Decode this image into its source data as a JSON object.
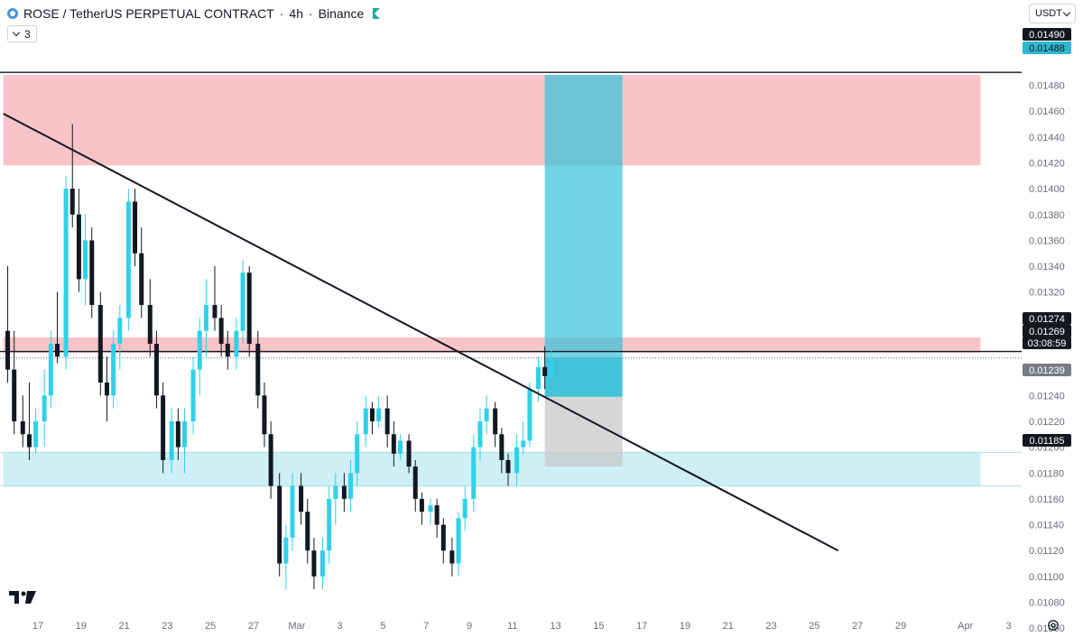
{
  "header": {
    "symbol": "ROSE / TetherUS PERPETUAL CONTRACT",
    "sep1": "·",
    "interval": "4h",
    "sep2": "·",
    "exchange": "Binance",
    "indicator_count": "3"
  },
  "currency": "USDT",
  "colors": {
    "up": "#2fd1e8",
    "down": "#131722",
    "resistance_zone": "#f8c4c8",
    "support_zone": "#cdeff5",
    "profit_zone": "#35c3dc",
    "loss_zone": "#c8c8c8"
  },
  "icons": [
    "symbol-logo-icon",
    "market-open-flag-icon",
    "chevron-down-icon",
    "tradingview-logo-icon",
    "settings-gear-icon"
  ],
  "chart_data": {
    "type": "candlestick",
    "symbol": "ROSE / TetherUS PERPETUAL CONTRACT",
    "interval": "4h",
    "exchange": "Binance",
    "ylim": [
      0.01046,
      0.01502
    ],
    "y_ticks": [
      "0.01060",
      "0.01080",
      "0.01100",
      "0.01120",
      "0.01140",
      "0.01160",
      "0.01180",
      "0.01200",
      "0.01220",
      "0.01240",
      "0.01260",
      "0.01280",
      "0.01300",
      "0.01320",
      "0.01340",
      "0.01360",
      "0.01380",
      "0.01400",
      "0.01420",
      "0.01440",
      "0.01460",
      "0.01480"
    ],
    "x_ticks": [
      {
        "label": "17",
        "day": 17
      },
      {
        "label": "19",
        "day": 19
      },
      {
        "label": "21",
        "day": 21
      },
      {
        "label": "23",
        "day": 23
      },
      {
        "label": "25",
        "day": 25
      },
      {
        "label": "27",
        "day": 27
      },
      {
        "label": "Mar",
        "day": 29
      },
      {
        "label": "3",
        "day": 31
      },
      {
        "label": "5",
        "day": 33
      },
      {
        "label": "7",
        "day": 35
      },
      {
        "label": "9",
        "day": 37
      },
      {
        "label": "11",
        "day": 39
      },
      {
        "label": "13",
        "day": 41
      },
      {
        "label": "15",
        "day": 43
      },
      {
        "label": "17",
        "day": 45
      },
      {
        "label": "19",
        "day": 47
      },
      {
        "label": "21",
        "day": 49
      },
      {
        "label": "23",
        "day": 51
      },
      {
        "label": "25",
        "day": 53
      },
      {
        "label": "27",
        "day": 55
      },
      {
        "label": "29",
        "day": 57
      },
      {
        "label": "Apr",
        "day": 60
      },
      {
        "label": "3",
        "day": 62
      }
    ],
    "price_labels": [
      {
        "text": "0.01490",
        "price": 0.0149,
        "bg": "#131722",
        "fg": "#ffffff"
      },
      {
        "text": "0.01488",
        "price": 0.01488,
        "bg": "#2fb8d0",
        "fg": "#131722"
      },
      {
        "text": "0.01274",
        "price": 0.01274,
        "bg": "#131722",
        "fg": "#ffffff"
      },
      {
        "text": "0.01269",
        "price": 0.01269,
        "bg": "#131722",
        "fg": "#ffffff"
      },
      {
        "text": "03:08:59",
        "price": 0.0126,
        "bg": "#131722",
        "fg": "#ffffff"
      },
      {
        "text": "0.01239",
        "price": 0.01239,
        "bg": "#787b86",
        "fg": "#ffffff"
      },
      {
        "text": "0.01185",
        "price": 0.01185,
        "bg": "#131722",
        "fg": "#ffffff"
      }
    ],
    "zones": [
      {
        "name": "resistance-zone-upper",
        "from_day": 15.4,
        "to_day": 60.7,
        "top": 0.01488,
        "bottom": 0.01418,
        "color": "#f8c4c8"
      },
      {
        "name": "resistance-zone-lower",
        "from_day": 15.4,
        "to_day": 60.7,
        "top": 0.01285,
        "bottom": 0.01273,
        "color": "#f8c4c8"
      },
      {
        "name": "support-zone",
        "from_day": 15.4,
        "to_day": 60.7,
        "top": 0.01196,
        "bottom": 0.0117,
        "color": "#cdeff5"
      }
    ],
    "position": {
      "type": "long",
      "from_day": 40.5,
      "to_day": 44.1,
      "target": 0.01488,
      "entry": 0.01239,
      "stop": 0.01185
    },
    "horizontal_lines": [
      {
        "price": 0.01274,
        "style": "solid"
      },
      {
        "price": 0.01269,
        "style": "dotted"
      },
      {
        "price": 0.0149,
        "style": "solid"
      }
    ],
    "trendline": {
      "x1_day": 15.4,
      "y1": 0.01458,
      "x2_day": 54.1,
      "y2": 0.0112
    },
    "candles": [
      {
        "day": 15.6,
        "o": 0.0129,
        "h": 0.0134,
        "l": 0.0125,
        "c": 0.0126
      },
      {
        "day": 15.9,
        "o": 0.0126,
        "h": 0.0129,
        "l": 0.0121,
        "c": 0.0122
      },
      {
        "day": 16.3,
        "o": 0.0122,
        "h": 0.0124,
        "l": 0.012,
        "c": 0.0121
      },
      {
        "day": 16.6,
        "o": 0.0121,
        "h": 0.0125,
        "l": 0.0119,
        "c": 0.012
      },
      {
        "day": 16.9,
        "o": 0.012,
        "h": 0.0123,
        "l": 0.01195,
        "c": 0.0122
      },
      {
        "day": 17.3,
        "o": 0.0122,
        "h": 0.0126,
        "l": 0.012,
        "c": 0.0124
      },
      {
        "day": 17.6,
        "o": 0.0124,
        "h": 0.0129,
        "l": 0.0123,
        "c": 0.0128
      },
      {
        "day": 17.9,
        "o": 0.0128,
        "h": 0.0132,
        "l": 0.01265,
        "c": 0.0127
      },
      {
        "day": 18.3,
        "o": 0.0127,
        "h": 0.0141,
        "l": 0.0126,
        "c": 0.014
      },
      {
        "day": 18.6,
        "o": 0.014,
        "h": 0.0145,
        "l": 0.0137,
        "c": 0.0138
      },
      {
        "day": 18.9,
        "o": 0.0138,
        "h": 0.014,
        "l": 0.0132,
        "c": 0.0133
      },
      {
        "day": 19.2,
        "o": 0.0133,
        "h": 0.0138,
        "l": 0.0131,
        "c": 0.0136
      },
      {
        "day": 19.5,
        "o": 0.0136,
        "h": 0.0137,
        "l": 0.013,
        "c": 0.0131
      },
      {
        "day": 19.9,
        "o": 0.0131,
        "h": 0.0132,
        "l": 0.0124,
        "c": 0.0125
      },
      {
        "day": 20.2,
        "o": 0.0125,
        "h": 0.0127,
        "l": 0.0122,
        "c": 0.0124
      },
      {
        "day": 20.5,
        "o": 0.0124,
        "h": 0.0129,
        "l": 0.0123,
        "c": 0.0128
      },
      {
        "day": 20.8,
        "o": 0.0128,
        "h": 0.0131,
        "l": 0.0126,
        "c": 0.013
      },
      {
        "day": 21.2,
        "o": 0.013,
        "h": 0.014,
        "l": 0.0129,
        "c": 0.0139
      },
      {
        "day": 21.5,
        "o": 0.0139,
        "h": 0.014,
        "l": 0.0134,
        "c": 0.0135
      },
      {
        "day": 21.8,
        "o": 0.0135,
        "h": 0.0137,
        "l": 0.013,
        "c": 0.0131
      },
      {
        "day": 22.2,
        "o": 0.0131,
        "h": 0.0133,
        "l": 0.0127,
        "c": 0.0128
      },
      {
        "day": 22.5,
        "o": 0.0128,
        "h": 0.0129,
        "l": 0.0123,
        "c": 0.0124
      },
      {
        "day": 22.8,
        "o": 0.0124,
        "h": 0.0125,
        "l": 0.0118,
        "c": 0.0119
      },
      {
        "day": 23.2,
        "o": 0.0119,
        "h": 0.0123,
        "l": 0.0118,
        "c": 0.0122
      },
      {
        "day": 23.5,
        "o": 0.0122,
        "h": 0.0123,
        "l": 0.0119,
        "c": 0.012
      },
      {
        "day": 23.8,
        "o": 0.012,
        "h": 0.0123,
        "l": 0.0118,
        "c": 0.0122
      },
      {
        "day": 24.2,
        "o": 0.0122,
        "h": 0.0127,
        "l": 0.0121,
        "c": 0.0126
      },
      {
        "day": 24.5,
        "o": 0.0126,
        "h": 0.013,
        "l": 0.0124,
        "c": 0.0129
      },
      {
        "day": 24.8,
        "o": 0.0129,
        "h": 0.0133,
        "l": 0.0127,
        "c": 0.0131
      },
      {
        "day": 25.2,
        "o": 0.0131,
        "h": 0.0134,
        "l": 0.0129,
        "c": 0.013
      },
      {
        "day": 25.5,
        "o": 0.013,
        "h": 0.0131,
        "l": 0.0127,
        "c": 0.0128
      },
      {
        "day": 25.8,
        "o": 0.0128,
        "h": 0.0129,
        "l": 0.0126,
        "c": 0.0127
      },
      {
        "day": 26.2,
        "o": 0.0127,
        "h": 0.013,
        "l": 0.0126,
        "c": 0.0129
      },
      {
        "day": 26.5,
        "o": 0.0129,
        "h": 0.01345,
        "l": 0.0128,
        "c": 0.01335
      },
      {
        "day": 26.8,
        "o": 0.01335,
        "h": 0.0134,
        "l": 0.0127,
        "c": 0.0128
      },
      {
        "day": 27.2,
        "o": 0.0128,
        "h": 0.0129,
        "l": 0.0123,
        "c": 0.0124
      },
      {
        "day": 27.5,
        "o": 0.0124,
        "h": 0.0125,
        "l": 0.012,
        "c": 0.0121
      },
      {
        "day": 27.8,
        "o": 0.0121,
        "h": 0.0122,
        "l": 0.0116,
        "c": 0.0117
      },
      {
        "day": 28.2,
        "o": 0.0117,
        "h": 0.0118,
        "l": 0.011,
        "c": 0.0111
      },
      {
        "day": 28.5,
        "o": 0.0111,
        "h": 0.0114,
        "l": 0.0109,
        "c": 0.0113
      },
      {
        "day": 28.8,
        "o": 0.0113,
        "h": 0.0118,
        "l": 0.0112,
        "c": 0.0117
      },
      {
        "day": 29.2,
        "o": 0.0117,
        "h": 0.0118,
        "l": 0.0114,
        "c": 0.0115
      },
      {
        "day": 29.5,
        "o": 0.0115,
        "h": 0.0116,
        "l": 0.0111,
        "c": 0.0112
      },
      {
        "day": 29.8,
        "o": 0.0112,
        "h": 0.0113,
        "l": 0.0109,
        "c": 0.011
      },
      {
        "day": 30.2,
        "o": 0.011,
        "h": 0.0113,
        "l": 0.0109,
        "c": 0.0112
      },
      {
        "day": 30.5,
        "o": 0.0112,
        "h": 0.0117,
        "l": 0.0111,
        "c": 0.0116
      },
      {
        "day": 30.8,
        "o": 0.0116,
        "h": 0.0118,
        "l": 0.0114,
        "c": 0.0117
      },
      {
        "day": 31.2,
        "o": 0.0117,
        "h": 0.0118,
        "l": 0.0115,
        "c": 0.0116
      },
      {
        "day": 31.5,
        "o": 0.0116,
        "h": 0.0119,
        "l": 0.0115,
        "c": 0.0118
      },
      {
        "day": 31.8,
        "o": 0.0118,
        "h": 0.0122,
        "l": 0.0117,
        "c": 0.0121
      },
      {
        "day": 32.2,
        "o": 0.0121,
        "h": 0.0124,
        "l": 0.012,
        "c": 0.0123
      },
      {
        "day": 32.5,
        "o": 0.0123,
        "h": 0.01235,
        "l": 0.0121,
        "c": 0.0122
      },
      {
        "day": 32.8,
        "o": 0.0122,
        "h": 0.0124,
        "l": 0.01215,
        "c": 0.0123
      },
      {
        "day": 33.2,
        "o": 0.0123,
        "h": 0.0124,
        "l": 0.012,
        "c": 0.0121
      },
      {
        "day": 33.5,
        "o": 0.0121,
        "h": 0.0122,
        "l": 0.01185,
        "c": 0.01195
      },
      {
        "day": 33.8,
        "o": 0.01195,
        "h": 0.0121,
        "l": 0.0119,
        "c": 0.01205
      },
      {
        "day": 34.2,
        "o": 0.01205,
        "h": 0.0121,
        "l": 0.0118,
        "c": 0.01185
      },
      {
        "day": 34.5,
        "o": 0.01185,
        "h": 0.0119,
        "l": 0.0115,
        "c": 0.0116
      },
      {
        "day": 34.8,
        "o": 0.0116,
        "h": 0.01165,
        "l": 0.0114,
        "c": 0.0115
      },
      {
        "day": 35.2,
        "o": 0.0115,
        "h": 0.0116,
        "l": 0.0114,
        "c": 0.01155
      },
      {
        "day": 35.5,
        "o": 0.01155,
        "h": 0.0116,
        "l": 0.0113,
        "c": 0.0114
      },
      {
        "day": 35.8,
        "o": 0.0114,
        "h": 0.01145,
        "l": 0.0111,
        "c": 0.0112
      },
      {
        "day": 36.2,
        "o": 0.0112,
        "h": 0.0113,
        "l": 0.011,
        "c": 0.0111
      },
      {
        "day": 36.5,
        "o": 0.0111,
        "h": 0.0115,
        "l": 0.011,
        "c": 0.01145
      },
      {
        "day": 36.8,
        "o": 0.01145,
        "h": 0.0117,
        "l": 0.01135,
        "c": 0.0116
      },
      {
        "day": 37.2,
        "o": 0.0116,
        "h": 0.0121,
        "l": 0.0115,
        "c": 0.012
      },
      {
        "day": 37.5,
        "o": 0.012,
        "h": 0.0123,
        "l": 0.0119,
        "c": 0.0122
      },
      {
        "day": 37.8,
        "o": 0.0122,
        "h": 0.0124,
        "l": 0.0121,
        "c": 0.0123
      },
      {
        "day": 38.2,
        "o": 0.0123,
        "h": 0.01235,
        "l": 0.012,
        "c": 0.0121
      },
      {
        "day": 38.5,
        "o": 0.0121,
        "h": 0.01215,
        "l": 0.0118,
        "c": 0.0119
      },
      {
        "day": 38.8,
        "o": 0.0119,
        "h": 0.01195,
        "l": 0.0117,
        "c": 0.0118
      },
      {
        "day": 39.2,
        "o": 0.0118,
        "h": 0.0121,
        "l": 0.0117,
        "c": 0.012
      },
      {
        "day": 39.5,
        "o": 0.012,
        "h": 0.0122,
        "l": 0.01195,
        "c": 0.01205
      },
      {
        "day": 39.8,
        "o": 0.01205,
        "h": 0.0125,
        "l": 0.012,
        "c": 0.01245
      },
      {
        "day": 40.2,
        "o": 0.01245,
        "h": 0.0127,
        "l": 0.01235,
        "c": 0.01262
      },
      {
        "day": 40.5,
        "o": 0.01262,
        "h": 0.01278,
        "l": 0.01245,
        "c": 0.01255
      },
      {
        "day": 40.8,
        "o": 0.01255,
        "h": 0.01275,
        "l": 0.0125,
        "c": 0.01269
      }
    ]
  }
}
